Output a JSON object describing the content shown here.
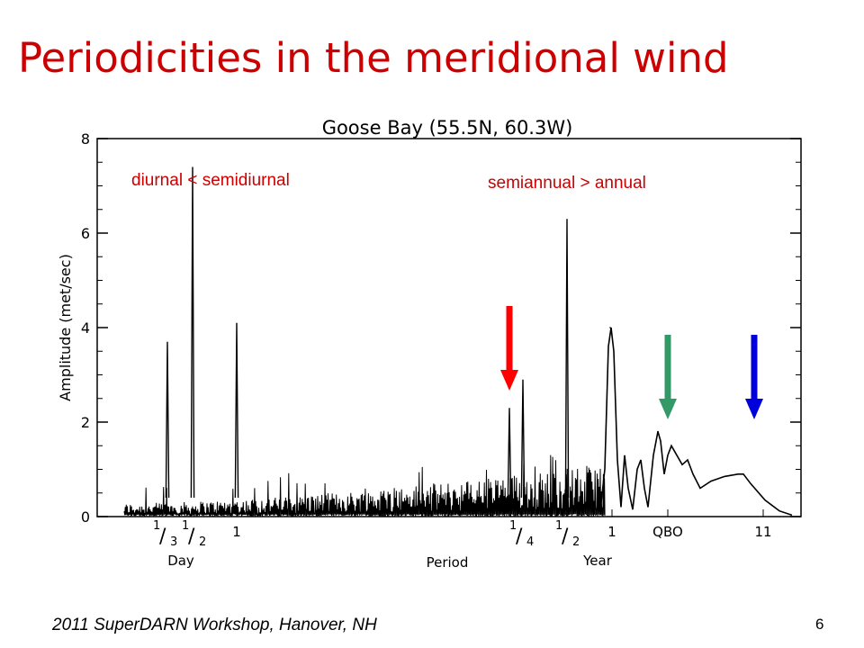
{
  "slide": {
    "title": "Periodicities in the meridional wind",
    "footer": "2011 SuperDARN Workshop, Hanover, NH",
    "page_number": "6"
  },
  "colors": {
    "title": "#cc0000",
    "annotation": "#cc0000",
    "arrow_semiannual": "#ff0000",
    "arrow_qbo": "#339966",
    "arrow_solar_cycle": "#0000dd"
  },
  "chart_data": {
    "type": "line",
    "title": "Goose Bay (55.5N, 60.3W)",
    "xlabel": "Period",
    "ylabel": "Amplitude (met/sec)",
    "ylim": [
      0,
      8
    ],
    "yticks": [
      0,
      2,
      4,
      6,
      8
    ],
    "x_scale": "log frequency (period decreasing to the right)",
    "x_groups": [
      {
        "label": "Day",
        "ticks": [
          "1/3",
          "1/2",
          "1"
        ]
      },
      {
        "label": "Year",
        "ticks": [
          "1/4",
          "1/2",
          "1",
          "QBO",
          "11"
        ]
      }
    ],
    "annotations": [
      "diurnal < semidiurnal",
      "semiannual > annual"
    ],
    "arrows": [
      {
        "target": "1/4 year",
        "color": "red"
      },
      {
        "target": "QBO",
        "color": "green"
      },
      {
        "target": "11 year",
        "color": "blue"
      }
    ],
    "peaks": [
      {
        "period": "1/3 day",
        "amplitude": 3.7
      },
      {
        "period": "1/2 day",
        "amplitude": 7.4
      },
      {
        "period": "1 day",
        "amplitude": 4.1
      },
      {
        "period": "1/4 year",
        "amplitude": 2.3
      },
      {
        "period": "~1/3 year",
        "amplitude": 2.9
      },
      {
        "period": "1/2 year",
        "amplitude": 6.3
      },
      {
        "period": "1 year",
        "amplitude": 4.0
      },
      {
        "period": "QBO",
        "amplitude": 1.8
      },
      {
        "period": "11 year",
        "amplitude": 0.9
      }
    ]
  }
}
